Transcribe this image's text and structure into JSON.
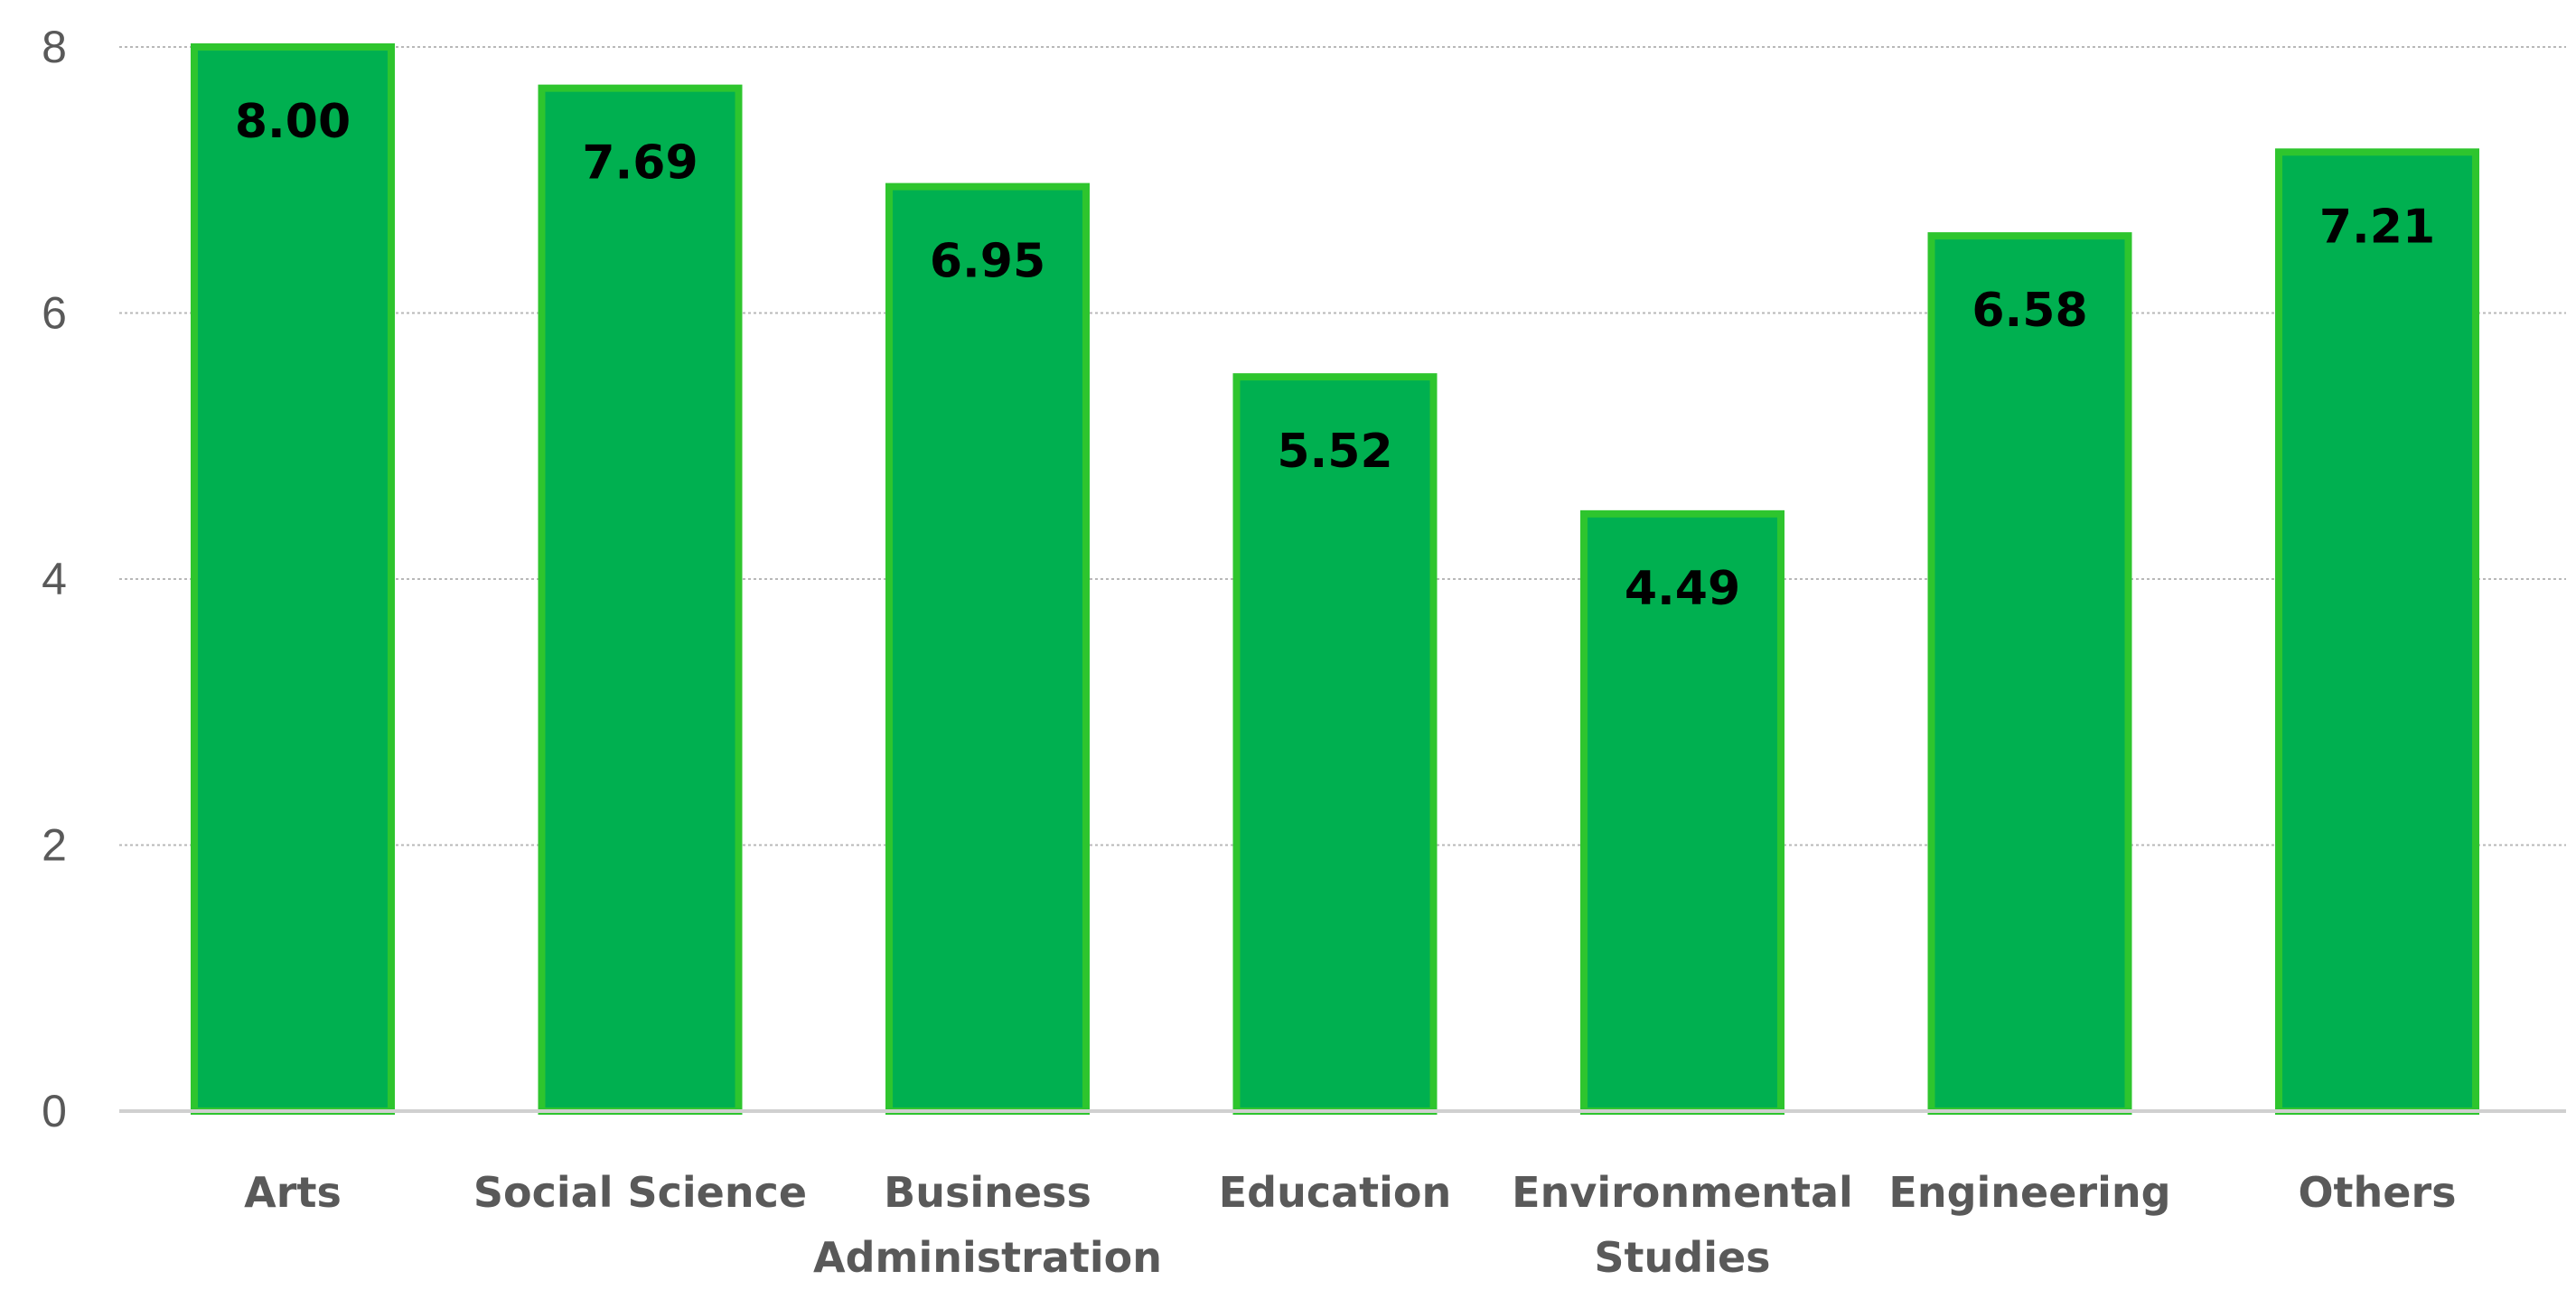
{
  "chart_data": {
    "type": "bar",
    "title": "",
    "xlabel": "",
    "ylabel": "",
    "ylim": [
      0,
      8
    ],
    "yticks": [
      "0",
      "2",
      "4",
      "6",
      "8"
    ],
    "ytick_values": [
      0,
      2,
      4,
      6,
      8
    ],
    "grid": true,
    "categories": [
      [
        "Arts"
      ],
      [
        "Social Science"
      ],
      [
        "Business",
        "Administration"
      ],
      [
        "Education"
      ],
      [
        "Environmental",
        "Studies"
      ],
      [
        "Engineering"
      ],
      [
        "Others"
      ]
    ],
    "values": [
      8.0,
      7.69,
      6.95,
      5.52,
      4.49,
      6.58,
      7.21
    ],
    "data_labels": [
      "8.00",
      "7.69",
      "6.95",
      "5.52",
      "4.49",
      "6.58",
      "7.21"
    ],
    "colors": {
      "bar_fill": "#00b050",
      "bar_border": "#2ec52e",
      "grid": "#b8b8b8",
      "axis": "#d0d0d0",
      "tick_text": "#595959",
      "label_text": "#000000"
    }
  }
}
